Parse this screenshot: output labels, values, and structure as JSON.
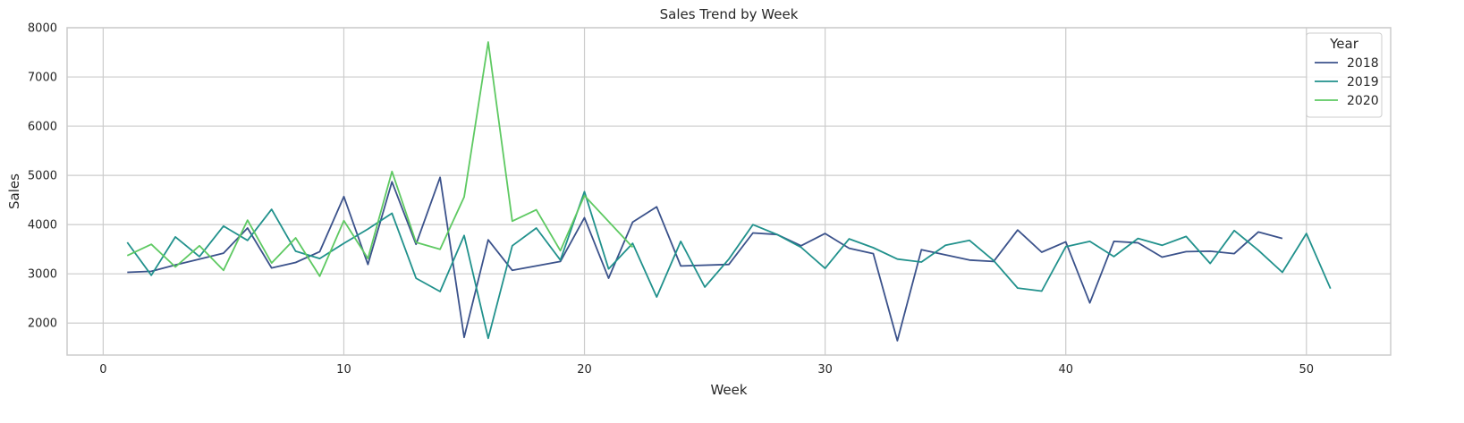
{
  "chart_data": {
    "type": "line",
    "title": "Sales Trend by Week",
    "xlabel": "Week",
    "ylabel": "Sales",
    "xlim": [
      -1.5,
      53.5
    ],
    "ylim": [
      1350,
      8000
    ],
    "xticks": [
      0,
      10,
      20,
      30,
      40,
      50
    ],
    "yticks": [
      2000,
      3000,
      4000,
      5000,
      6000,
      7000,
      8000
    ],
    "grid": true,
    "legend": {
      "title": "Year",
      "placement": "top-right"
    },
    "series": [
      {
        "name": "2018",
        "color": "#3b528b",
        "points": [
          [
            1,
            3030
          ],
          [
            2,
            3050
          ],
          [
            3,
            3180
          ],
          [
            4,
            3300
          ],
          [
            5,
            3420
          ],
          [
            6,
            3930
          ],
          [
            7,
            3120
          ],
          [
            8,
            3230
          ],
          [
            9,
            3450
          ],
          [
            10,
            4570
          ],
          [
            11,
            3190
          ],
          [
            12,
            4870
          ],
          [
            13,
            3600
          ],
          [
            14,
            4960
          ],
          [
            15,
            1710
          ],
          [
            16,
            3690
          ],
          [
            17,
            3070
          ],
          [
            19,
            3250
          ],
          [
            20,
            4140
          ],
          [
            21,
            2910
          ],
          [
            22,
            4050
          ],
          [
            23,
            4360
          ],
          [
            24,
            3160
          ],
          [
            26,
            3190
          ],
          [
            27,
            3830
          ],
          [
            28,
            3800
          ],
          [
            29,
            3570
          ],
          [
            30,
            3820
          ],
          [
            31,
            3520
          ],
          [
            32,
            3410
          ],
          [
            33,
            1640
          ],
          [
            34,
            3490
          ],
          [
            36,
            3280
          ],
          [
            37,
            3250
          ],
          [
            38,
            3890
          ],
          [
            39,
            3440
          ],
          [
            40,
            3650
          ],
          [
            41,
            2410
          ],
          [
            42,
            3660
          ],
          [
            43,
            3630
          ],
          [
            44,
            3340
          ],
          [
            45,
            3450
          ],
          [
            46,
            3460
          ],
          [
            47,
            3410
          ],
          [
            48,
            3850
          ],
          [
            49,
            3720
          ]
        ]
      },
      {
        "name": "2019",
        "color": "#21918c",
        "points": [
          [
            1,
            3640
          ],
          [
            2,
            2970
          ],
          [
            3,
            3750
          ],
          [
            4,
            3350
          ],
          [
            5,
            3970
          ],
          [
            6,
            3680
          ],
          [
            7,
            4310
          ],
          [
            8,
            3460
          ],
          [
            9,
            3310
          ],
          [
            10,
            3620
          ],
          [
            11,
            3910
          ],
          [
            12,
            4230
          ],
          [
            13,
            2910
          ],
          [
            14,
            2640
          ],
          [
            15,
            3780
          ],
          [
            16,
            1690
          ],
          [
            17,
            3570
          ],
          [
            18,
            3930
          ],
          [
            19,
            3280
          ],
          [
            20,
            4670
          ],
          [
            21,
            3100
          ],
          [
            22,
            3620
          ],
          [
            23,
            2530
          ],
          [
            24,
            3660
          ],
          [
            25,
            2730
          ],
          [
            26,
            3300
          ],
          [
            27,
            4000
          ],
          [
            28,
            3800
          ],
          [
            29,
            3540
          ],
          [
            30,
            3110
          ],
          [
            31,
            3710
          ],
          [
            32,
            3530
          ],
          [
            33,
            3300
          ],
          [
            34,
            3240
          ],
          [
            35,
            3580
          ],
          [
            36,
            3680
          ],
          [
            37,
            3270
          ],
          [
            38,
            2710
          ],
          [
            39,
            2650
          ],
          [
            40,
            3550
          ],
          [
            41,
            3660
          ],
          [
            42,
            3350
          ],
          [
            43,
            3720
          ],
          [
            44,
            3580
          ],
          [
            45,
            3760
          ],
          [
            46,
            3210
          ],
          [
            47,
            3880
          ],
          [
            48,
            3480
          ],
          [
            49,
            3030
          ],
          [
            50,
            3820
          ],
          [
            51,
            2700
          ]
        ]
      },
      {
        "name": "2020",
        "color": "#5ec962",
        "points": [
          [
            1,
            3370
          ],
          [
            2,
            3600
          ],
          [
            3,
            3140
          ],
          [
            4,
            3570
          ],
          [
            5,
            3070
          ],
          [
            6,
            4090
          ],
          [
            7,
            3220
          ],
          [
            8,
            3730
          ],
          [
            9,
            2950
          ],
          [
            10,
            4080
          ],
          [
            11,
            3310
          ],
          [
            12,
            5080
          ],
          [
            13,
            3640
          ],
          [
            14,
            3500
          ],
          [
            15,
            4560
          ],
          [
            16,
            7710
          ],
          [
            17,
            4070
          ],
          [
            18,
            4300
          ],
          [
            19,
            3470
          ],
          [
            20,
            4590
          ],
          [
            22,
            3540
          ]
        ]
      }
    ]
  }
}
